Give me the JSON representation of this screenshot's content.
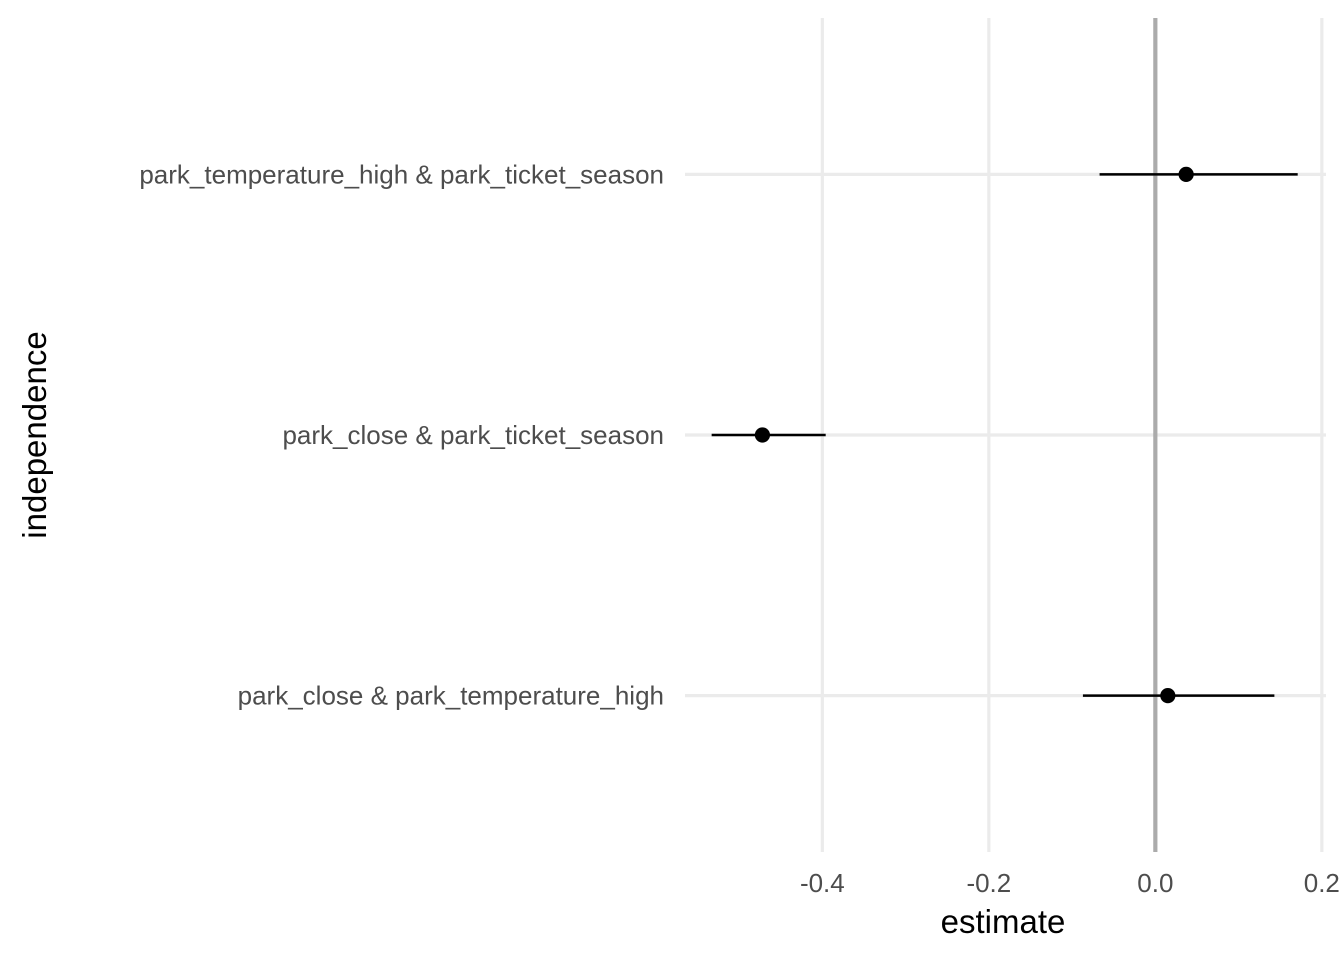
{
  "chart_data": {
    "type": "scatter",
    "subtype": "point-range",
    "title": "",
    "xlabel": "estimate",
    "ylabel": "independence",
    "xlim": [
      -0.565,
      0.205
    ],
    "x_ticks": [
      -0.4,
      -0.2,
      0.0,
      0.2
    ],
    "x_tick_labels": [
      "-0.4",
      "-0.2",
      "0.0",
      "0.2"
    ],
    "reference_line_x": 0.0,
    "grid": true,
    "legend": "none",
    "categories": [
      "park_temperature_high & park_ticket_season",
      "park_close & park_ticket_season",
      "park_close & park_temperature_high"
    ],
    "estimates": [
      0.037,
      -0.472,
      0.015
    ],
    "lower": [
      -0.067,
      -0.533,
      -0.087
    ],
    "upper": [
      0.171,
      -0.396,
      0.143
    ]
  }
}
